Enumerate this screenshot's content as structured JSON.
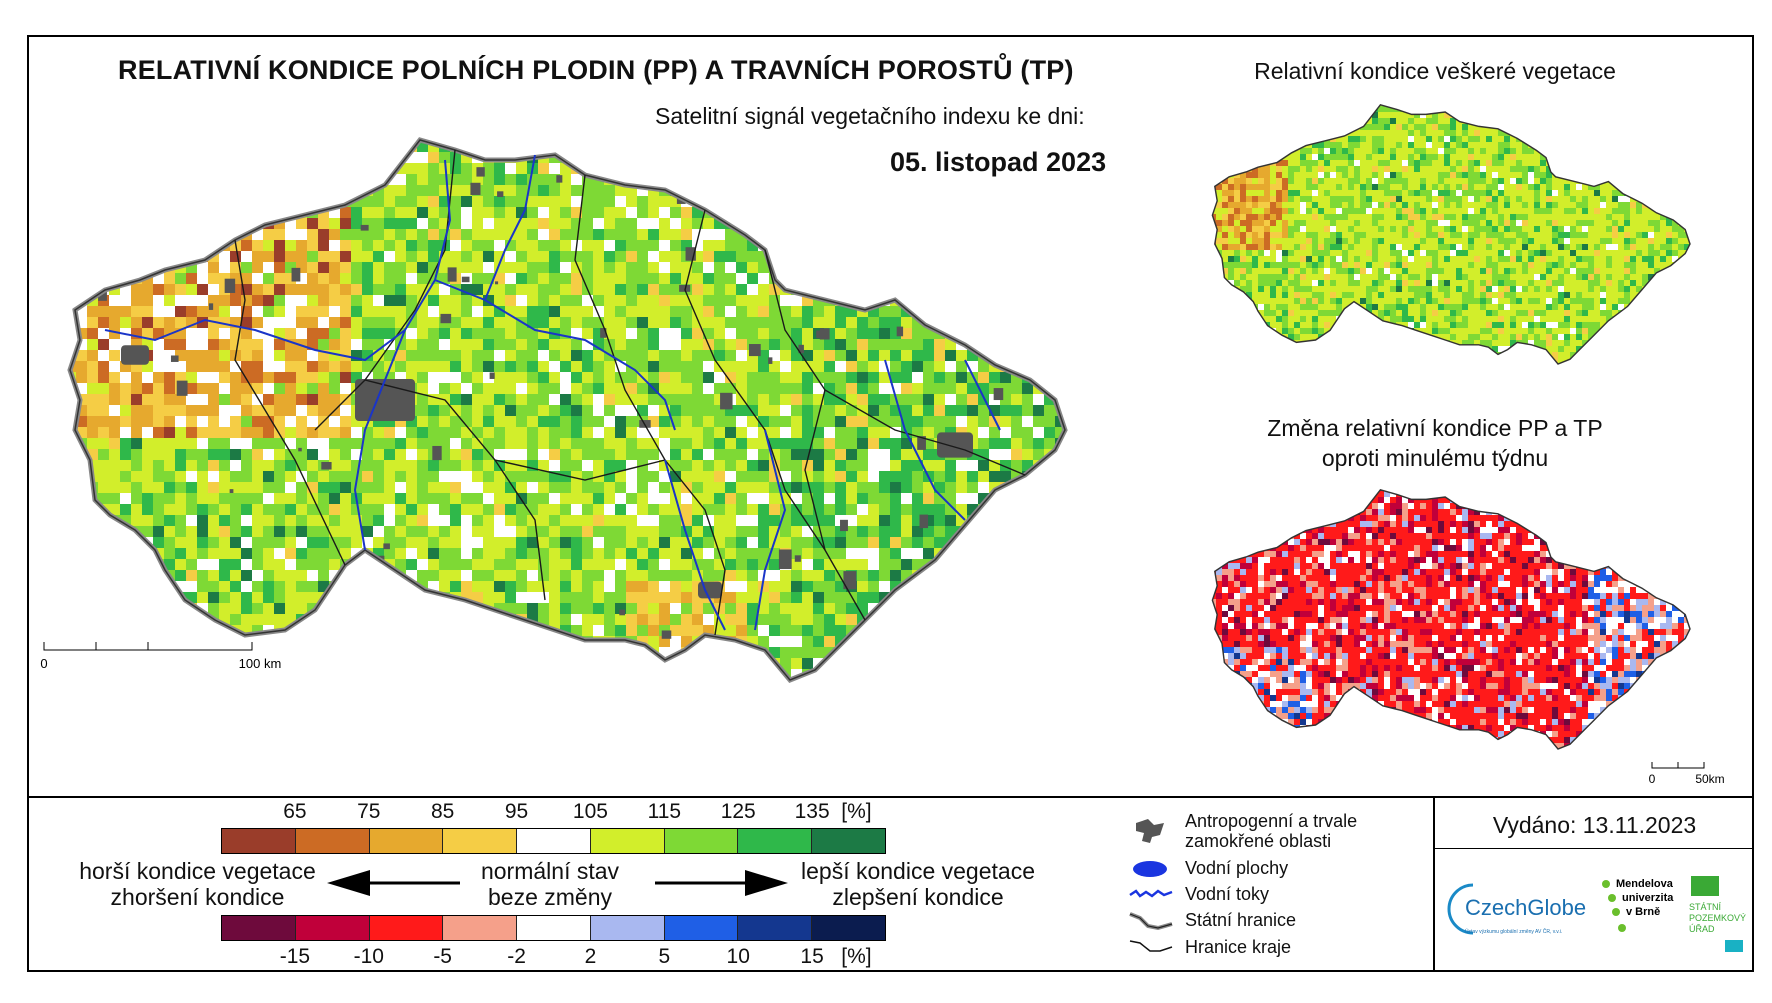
{
  "header": {
    "title": "RELATIVNÍ KONDICE POLNÍCH PLODIN (PP) A TRAVNÍCH POROSTŮ (TP)",
    "subtitle": "Satelitní signál vegetačního indexu ke dni:",
    "date": "05. listopad 2023"
  },
  "inset_top": {
    "title": "Relativní kondice veškeré vegetace"
  },
  "inset_bottom": {
    "title_line1": "Změna relativní kondice PP a TP",
    "title_line2": "oproti minulému týdnu"
  },
  "main_scale": {
    "zero": "0",
    "end": "100 km"
  },
  "inset_scale": {
    "zero": "0",
    "end": "50km"
  },
  "legend_condition": {
    "ticks": [
      "65",
      "75",
      "85",
      "95",
      "105",
      "115",
      "125",
      "135",
      "[%]"
    ],
    "colors": [
      "#9a3d2a",
      "#cc6b24",
      "#e6a92e",
      "#f5cd45",
      "#ffffff",
      "#d2ee2b",
      "#7ed935",
      "#2fb84a",
      "#1c7a45"
    ]
  },
  "legend_change": {
    "ticks": [
      "-15",
      "-10",
      "-5",
      "-2",
      "2",
      "5",
      "10",
      "15",
      "[%]"
    ],
    "colors": [
      "#6e0a3c",
      "#c0003a",
      "#ff1a1a",
      "#f5a08a",
      "#ffffff",
      "#a9b8f0",
      "#1f5fe6",
      "#14378f",
      "#0b1c4f"
    ]
  },
  "legend_text": {
    "worse_line1": "horší kondice vegetace",
    "worse_line2": "zhoršení kondice",
    "normal_line1": "normální stav",
    "normal_line2": "beze změny",
    "better_line1": "lepší kondice vegetace",
    "better_line2": "zlepšení kondice"
  },
  "map_legend": {
    "anthropogenic_line1": "Antropogenní a trvale",
    "anthropogenic_line2": "zamokřené oblasti",
    "water_bodies": "Vodní plochy",
    "water_streams": "Vodní toky",
    "state_border": "Státní hranice",
    "region_border": "Hranice kraje"
  },
  "issued": {
    "label": "Vydáno: 13.11.2023"
  },
  "logos": {
    "czechglobe": "CzechGlobe",
    "czechglobe_sub": "Ústav výzkumu globální změny AV ČR, v.v.i.",
    "mendel_line1": "Mendelova",
    "mendel_line2": "univerzita",
    "mendel_line3": "v Brně",
    "spu_line1": "STÁTNÍ",
    "spu_line2": "POZEMKOVÝ",
    "spu_line3": "ÚŘAD"
  }
}
